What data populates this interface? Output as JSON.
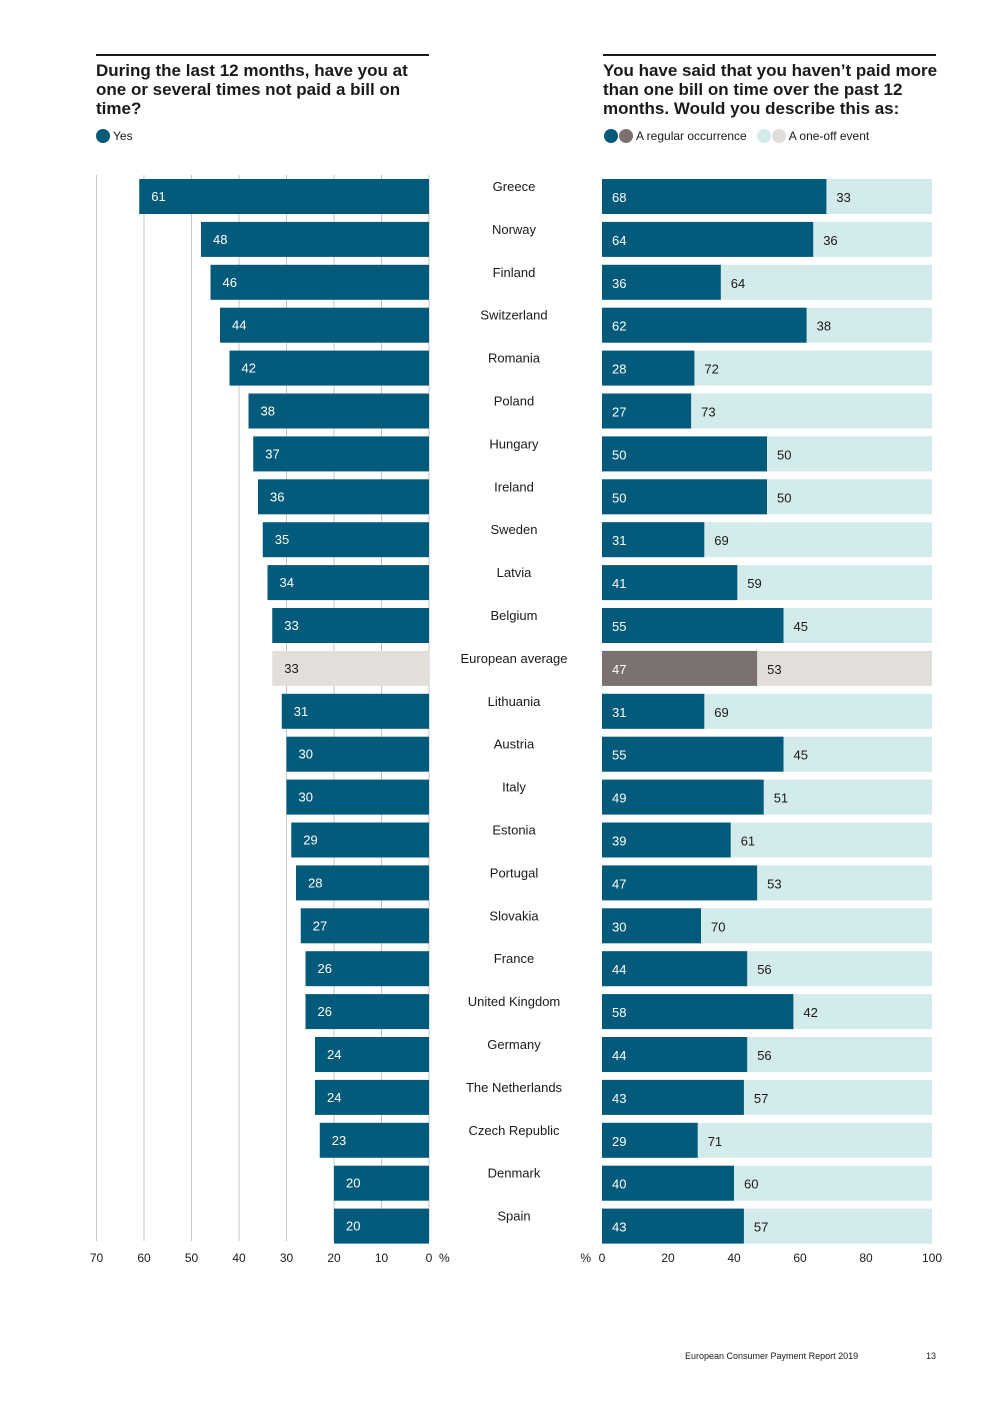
{
  "left_panel": {
    "title": "During the last 12 months, have you at one or several times not paid a bill on time?",
    "legend": [
      {
        "label": "Yes",
        "color": "#035a7a"
      }
    ]
  },
  "right_panel": {
    "title": "You have said that you haven’t paid more than one bill on time over the past 12 months. Would you describe this as:",
    "legend": [
      {
        "label": "A regular occurrence",
        "colors": [
          "#035a7a",
          "#7a7170"
        ]
      },
      {
        "label": "A one-off event",
        "colors": [
          "#d3ebea",
          "#e2dfdb"
        ]
      }
    ]
  },
  "colors": {
    "primary": "#035a7a",
    "average_dark": "#7a7170",
    "light": "#d3ebea",
    "average_light": "#e2dfdb",
    "gridline": "#c4c4c4"
  },
  "chart_data": [
    {
      "type": "bar",
      "orientation": "horizontal",
      "direction": "right-to-left",
      "title": "During the last 12 months, have you at one or several times not paid a bill on time?",
      "categories": [
        "Greece",
        "Norway",
        "Finland",
        "Switzerland",
        "Romania",
        "Poland",
        "Hungary",
        "Ireland",
        "Sweden",
        "Latvia",
        "Belgium",
        "European average",
        "Lithuania",
        "Austria",
        "Italy",
        "Estonia",
        "Portugal",
        "Slovakia",
        "France",
        "United Kingdom",
        "Germany",
        "The Netherlands",
        "Czech Republic",
        "Denmark",
        "Spain"
      ],
      "series": [
        {
          "name": "Yes",
          "values": [
            61,
            48,
            46,
            44,
            42,
            38,
            37,
            36,
            35,
            34,
            33,
            33,
            31,
            30,
            30,
            29,
            28,
            27,
            26,
            26,
            24,
            24,
            23,
            20,
            20
          ]
        }
      ],
      "highlight_category": "European average",
      "xlim": [
        0,
        70
      ],
      "xticks": [
        70,
        60,
        50,
        40,
        30,
        20,
        10,
        0
      ],
      "xlabel": "%",
      "grid": true
    },
    {
      "type": "bar",
      "orientation": "horizontal",
      "stacked": true,
      "title": "You have said that you haven’t paid more than one bill on time over the past 12 months. Would you describe this as:",
      "categories": [
        "Greece",
        "Norway",
        "Finland",
        "Switzerland",
        "Romania",
        "Poland",
        "Hungary",
        "Ireland",
        "Sweden",
        "Latvia",
        "Belgium",
        "European average",
        "Lithuania",
        "Austria",
        "Italy",
        "Estonia",
        "Portugal",
        "Slovakia",
        "France",
        "United Kingdom",
        "Germany",
        "The Netherlands",
        "Czech Republic",
        "Denmark",
        "Spain"
      ],
      "series": [
        {
          "name": "A regular occurrence",
          "values": [
            68,
            64,
            36,
            62,
            28,
            27,
            50,
            50,
            31,
            41,
            55,
            47,
            31,
            55,
            49,
            39,
            47,
            30,
            44,
            58,
            44,
            43,
            29,
            40,
            43
          ]
        },
        {
          "name": "A one-off event",
          "values": [
            33,
            36,
            64,
            38,
            72,
            73,
            50,
            50,
            69,
            59,
            45,
            53,
            69,
            45,
            51,
            61,
            53,
            70,
            56,
            42,
            56,
            57,
            71,
            60,
            57
          ]
        }
      ],
      "highlight_category": "European average",
      "xlim": [
        0,
        100
      ],
      "xticks": [
        0,
        20,
        40,
        60,
        80,
        100
      ],
      "xlabel": "%",
      "grid": false
    }
  ],
  "footer": {
    "report": "European Consumer Payment Report 2019",
    "page": "13"
  }
}
